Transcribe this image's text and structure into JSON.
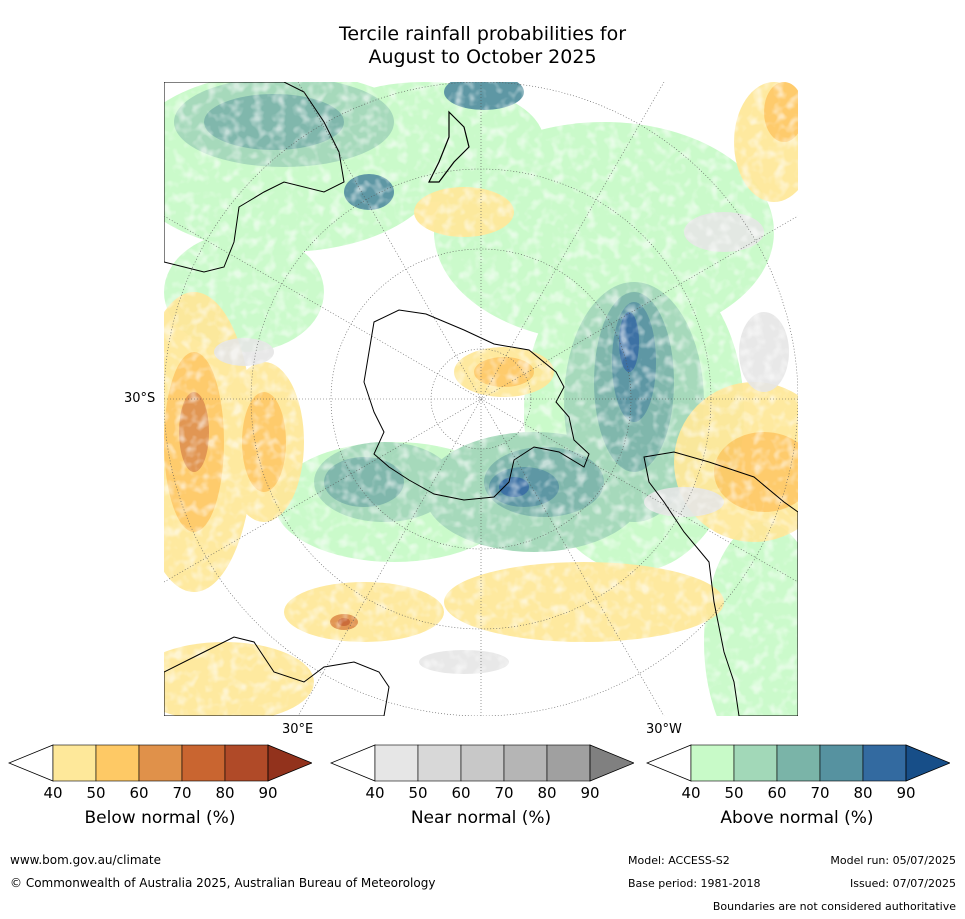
{
  "title": {
    "line1": "Tercile rainfall probabilities for",
    "line2": "August to October 2025"
  },
  "map": {
    "projection": "south-polar-stereographic",
    "labels": {
      "lat": "30°S",
      "lon_east": "30°E",
      "lon_west": "30°W"
    },
    "colors": {
      "ocean_base": "#ffffff",
      "coastline": "#000000"
    }
  },
  "colorbars": [
    {
      "label": "Below normal (%)",
      "ticks": [
        "40",
        "50",
        "60",
        "70",
        "80",
        "90"
      ],
      "colors": [
        "#ffffff",
        "#fee89a",
        "#fec965",
        "#e0914a",
        "#c96530",
        "#b04a28",
        "#92321c"
      ]
    },
    {
      "label": "Near normal (%)",
      "ticks": [
        "40",
        "50",
        "60",
        "70",
        "80",
        "90"
      ],
      "colors": [
        "#ffffff",
        "#e6e6e6",
        "#d8d8d8",
        "#c8c8c8",
        "#b5b5b5",
        "#a0a0a0",
        "#808080"
      ]
    },
    {
      "label": "Above normal (%)",
      "ticks": [
        "40",
        "50",
        "60",
        "70",
        "80",
        "90"
      ],
      "colors": [
        "#ffffff",
        "#c8fac8",
        "#a2d8b8",
        "#7ab4a8",
        "#5692a0",
        "#336aa0",
        "#174e88"
      ]
    }
  ],
  "footer": {
    "url": "www.bom.gov.au/climate",
    "copyright": "© Commonwealth of Australia 2025, Australian Bureau of Meteorology",
    "model": "Model: ACCESS-S2",
    "model_run": "Model run: 05/07/2025",
    "base_period": "Base period: 1981-2018",
    "issued": "Issued: 07/07/2025",
    "disclaimer": "Boundaries are not considered authoritative"
  }
}
